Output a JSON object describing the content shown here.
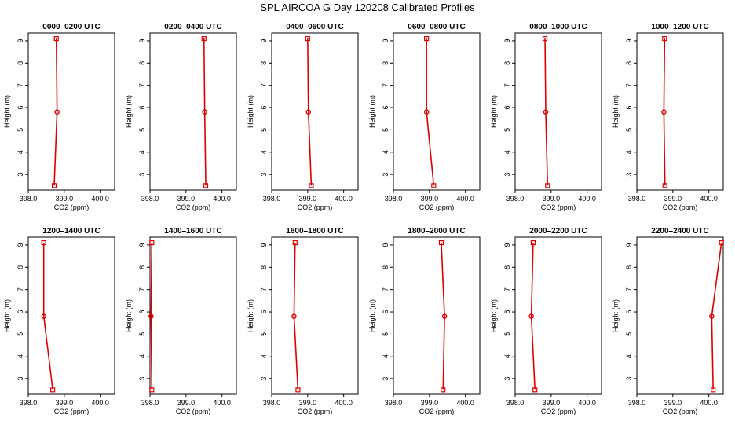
{
  "title": "SPL AIRCOA G  Day 120208  Calibrated Profiles",
  "chart_data": {
    "type": "line",
    "title": "SPL AIRCOA G  Day 120208  Calibrated Profiles",
    "xlabel": "CO2 (ppm)",
    "ylabel": "Height (m)",
    "xlim": [
      398.0,
      400.4
    ],
    "ylim": [
      2.3,
      9.35
    ],
    "xticks": [
      "398.0",
      "399.0",
      "400.0"
    ],
    "yticks": [
      "3",
      "4",
      "5",
      "6",
      "7",
      "8",
      "9"
    ],
    "grid": false,
    "line_color": "#dd0000",
    "heights": [
      2.5,
      5.8,
      9.1
    ],
    "panels": [
      {
        "title": "0000–0200 UTC",
        "values": [
          398.72,
          398.8,
          398.78
        ]
      },
      {
        "title": "0200–0400 UTC",
        "values": [
          399.55,
          399.52,
          399.5
        ]
      },
      {
        "title": "0400–0600 UTC",
        "values": [
          399.1,
          399.02,
          399.0
        ]
      },
      {
        "title": "0600–0800 UTC",
        "values": [
          399.12,
          398.92,
          398.92
        ]
      },
      {
        "title": "0800–1000 UTC",
        "values": [
          398.9,
          398.85,
          398.83
        ]
      },
      {
        "title": "1000–1200 UTC",
        "values": [
          398.78,
          398.75,
          398.77
        ]
      },
      {
        "title": "1200–1400 UTC",
        "values": [
          398.68,
          398.43,
          398.43
        ]
      },
      {
        "title": "1400–1600 UTC",
        "values": [
          398.05,
          398.03,
          398.05
        ]
      },
      {
        "title": "1600–1800 UTC",
        "values": [
          398.73,
          398.62,
          398.65
        ]
      },
      {
        "title": "1800–2000 UTC",
        "values": [
          399.38,
          399.42,
          399.33
        ]
      },
      {
        "title": "2000–2200 UTC",
        "values": [
          398.55,
          398.45,
          398.5
        ]
      },
      {
        "title": "2200–2400 UTC",
        "values": [
          400.12,
          400.08,
          400.35
        ]
      }
    ]
  }
}
